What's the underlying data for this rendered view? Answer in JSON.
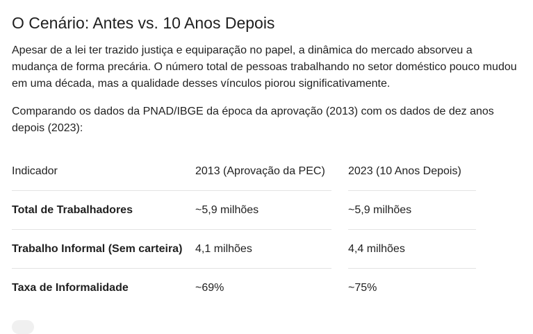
{
  "section": {
    "title": "O Cenário: Antes vs. 10 Anos Depois",
    "paragraph1": "Apesar de a lei ter trazido justiça e equiparação no papel, a dinâmica do mercado absorveu a mudança de forma precária. O número total de pessoas trabalhando no setor doméstico pouco mudou em uma década, mas a qualidade desses vínculos piorou significativamente.",
    "paragraph2": "Comparando os dados da PNAD/IBGE da época da aprovação (2013) com os dados de dez anos depois (2023):"
  },
  "table": {
    "headers": [
      "Indicador",
      "2013 (Aprovação da PEC)",
      "2023 (10 Anos Depois)"
    ],
    "rows": [
      [
        "Total de Trabalhadores",
        "~5,9 milhões",
        "~5,9 milhões"
      ],
      [
        "Trabalho Informal (Sem carteira)",
        "4,1 milhões",
        "4,4 milhões"
      ],
      [
        "Taxa de Informalidade",
        "~69%",
        "~75%"
      ]
    ]
  }
}
